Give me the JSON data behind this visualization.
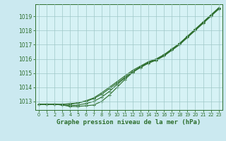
{
  "xlabel": "Graphe pression niveau de la mer (hPa)",
  "bg_color": "#cbe9f0",
  "plot_bg_color": "#d6f2f5",
  "line_color": "#2d6e2d",
  "grid_color": "#9ec8c8",
  "xlim": [
    -0.5,
    23.5
  ],
  "ylim": [
    1012.4,
    1019.85
  ],
  "yticks": [
    1013,
    1014,
    1015,
    1016,
    1017,
    1018,
    1019
  ],
  "xticks": [
    0,
    1,
    2,
    3,
    4,
    5,
    6,
    7,
    8,
    9,
    10,
    11,
    12,
    13,
    14,
    15,
    16,
    17,
    18,
    19,
    20,
    21,
    22,
    23
  ],
  "series": [
    [
      1012.8,
      1012.8,
      1012.8,
      1012.8,
      1012.8,
      1012.9,
      1013.0,
      1013.2,
      1013.5,
      1013.9,
      1014.3,
      1014.7,
      1015.1,
      1015.4,
      1015.7,
      1015.9,
      1016.2,
      1016.6,
      1017.0,
      1017.5,
      1018.0,
      1018.5,
      1019.0,
      1019.5
    ],
    [
      1012.8,
      1012.8,
      1012.8,
      1012.8,
      1012.85,
      1012.9,
      1013.05,
      1013.25,
      1013.6,
      1014.0,
      1014.4,
      1014.8,
      1015.2,
      1015.5,
      1015.8,
      1016.0,
      1016.3,
      1016.7,
      1017.1,
      1017.6,
      1018.1,
      1018.6,
      1019.1,
      1019.6
    ],
    [
      1012.8,
      1012.8,
      1012.8,
      1012.75,
      1012.7,
      1012.75,
      1012.85,
      1013.0,
      1013.3,
      1013.7,
      1014.2,
      1014.65,
      1015.1,
      1015.45,
      1015.75,
      1015.95,
      1016.25,
      1016.65,
      1017.05,
      1017.55,
      1018.05,
      1018.55,
      1019.05,
      1019.55
    ],
    [
      1012.8,
      1012.8,
      1012.8,
      1012.75,
      1012.65,
      1012.65,
      1012.7,
      1012.75,
      1013.0,
      1013.45,
      1014.0,
      1014.55,
      1015.05,
      1015.4,
      1015.7,
      1015.95,
      1016.25,
      1016.65,
      1017.05,
      1017.55,
      1018.05,
      1018.55,
      1019.05,
      1019.55
    ]
  ]
}
